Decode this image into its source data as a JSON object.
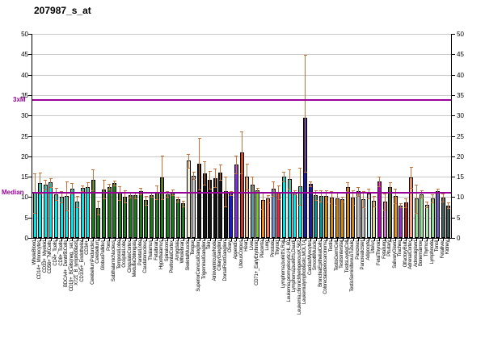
{
  "title": "207987_s_at",
  "chart_data": {
    "type": "bar",
    "title": "207987_s_at",
    "xlabel": "",
    "ylabel": "",
    "ylim": [
      0,
      50
    ],
    "yticks": [
      0,
      5,
      10,
      15,
      20,
      25,
      30,
      35,
      40,
      45,
      50
    ],
    "grid": true,
    "legend": "none",
    "axis_color": "#000000",
    "grid_color": "#c9c9c9",
    "error_bar_color": "#c87137",
    "median_line": {
      "label": "Median",
      "value": 11.0,
      "color": "#990099"
    },
    "threshold_line": {
      "label": "3xM",
      "value": 33.8,
      "color": "#990099"
    },
    "bars": [
      {
        "label": "WholeBlood",
        "value": 11.0,
        "err": 15.8,
        "color": "#00e6e6"
      },
      {
        "label": "CD14+_Monocytes",
        "value": 13.4,
        "err": 16.0,
        "color": "#00e6e6"
      },
      {
        "label": "CD33+_Myeloid",
        "value": 13.0,
        "err": 14.2,
        "color": "#00e6e6"
      },
      {
        "label": "CD56+_NKCells",
        "value": 13.6,
        "err": 14.7,
        "color": "#00e6e6"
      },
      {
        "label": "CD4+_Tcells",
        "value": 10.7,
        "err": 12.2,
        "color": "#00e6e6"
      },
      {
        "label": "CD8+_Tcells",
        "value": 10.1,
        "err": 11.5,
        "color": "#00e6e6"
      },
      {
        "label": "BDCA4+_DentriticCells",
        "value": 10.3,
        "err": 13.9,
        "color": "#00e6e6"
      },
      {
        "label": "CD19+_BCells(neg._sel.)",
        "value": 12.1,
        "err": 13.4,
        "color": "#00e6e6"
      },
      {
        "label": "X721_B_lymphoblasts",
        "value": 8.9,
        "err": 10.3,
        "color": "#00e6e6"
      },
      {
        "label": "CD105+_Endothelial",
        "value": 12.2,
        "err": 12.9,
        "color": "#00e6e6"
      },
      {
        "label": "CD34+",
        "value": 12.5,
        "err": 13.7,
        "color": "#00e6e6"
      },
      {
        "label": "CerebellumPeduncles",
        "value": 14.2,
        "err": 16.8,
        "color": "#1c7c1c"
      },
      {
        "label": "Cerebellum",
        "value": 7.4,
        "err": 9.0,
        "color": "#1c7c1c"
      },
      {
        "label": "GlobusPallidus",
        "value": 11.9,
        "err": 14.2,
        "color": "#1c7c1c"
      },
      {
        "label": "Pons",
        "value": 12.5,
        "err": 13.2,
        "color": "#1c7c1c"
      },
      {
        "label": "SubthalamicNucleus",
        "value": 13.4,
        "err": 14.0,
        "color": "#1c7c1c"
      },
      {
        "label": "TemporalLobe",
        "value": 11.0,
        "err": 12.7,
        "color": "#1c7c1c"
      },
      {
        "label": "OccipitalLobe",
        "value": 10.1,
        "err": 11.6,
        "color": "#1c7c1c"
      },
      {
        "label": "CingulateCortex",
        "value": 10.4,
        "err": 11.0,
        "color": "#1c7c1c"
      },
      {
        "label": "MedullaOblongata",
        "value": 10.4,
        "err": 11.2,
        "color": "#1c7c1c"
      },
      {
        "label": "ParietalLobe",
        "value": 11.5,
        "err": 12.3,
        "color": "#1c7c1c"
      },
      {
        "label": "Caudatenucleus",
        "value": 9.2,
        "err": 10.3,
        "color": "#1c7c1c"
      },
      {
        "label": "Thalamus",
        "value": 10.5,
        "err": 11.0,
        "color": "#1c7c1c"
      },
      {
        "label": "Fetalbrain",
        "value": 11.1,
        "err": 12.8,
        "color": "#1c7c1c"
      },
      {
        "label": "Hypothalamus",
        "value": 14.8,
        "err": 20.1,
        "color": "#1c7c1c"
      },
      {
        "label": "Spinalcord",
        "value": 10.7,
        "err": 11.4,
        "color": "#1c7c1c"
      },
      {
        "label": "PrefrontalCortex",
        "value": 11.1,
        "err": 11.8,
        "color": "#1c7c1c"
      },
      {
        "label": "Amygdala",
        "value": 9.4,
        "err": 10.0,
        "color": "#1c7c1c"
      },
      {
        "label": "Wholebrain",
        "value": 8.4,
        "err": 9.0,
        "color": "#1c7c1c"
      },
      {
        "label": "SkeletalMuscle",
        "value": 18.9,
        "err": 20.6,
        "color": "#f2edd5"
      },
      {
        "label": "Tongue",
        "value": 15.3,
        "err": 16.2,
        "color": "#c4c4c4"
      },
      {
        "label": "SuperiorCervicalGanglion",
        "value": 18.2,
        "err": 24.6,
        "color": "#141414"
      },
      {
        "label": "TrigeminalGanglion",
        "value": 15.9,
        "err": 18.8,
        "color": "#141414"
      },
      {
        "label": "Skin",
        "value": 14.3,
        "err": 16.5,
        "color": "#141414"
      },
      {
        "label": "AtrioventricularNode",
        "value": 14.7,
        "err": 16.9,
        "color": "#141414"
      },
      {
        "label": "CiliaryGanglion",
        "value": 16.1,
        "err": 18.0,
        "color": "#141414"
      },
      {
        "label": "DorsalRootGanglion",
        "value": 11.4,
        "err": 15.0,
        "color": "#141414"
      },
      {
        "label": "Ovary",
        "value": 11.0,
        "err": 11.5,
        "color": "#1a1ad2"
      },
      {
        "label": "Appendix",
        "value": 18.0,
        "err": 20.1,
        "color": "#8a2be2"
      },
      {
        "label": "UterusCorpus",
        "value": 20.9,
        "err": 26.0,
        "color": "#c0392b"
      },
      {
        "label": "Heart",
        "value": 15.0,
        "err": 18.2,
        "color": "#e3c39d"
      },
      {
        "label": "Liver",
        "value": 13.0,
        "err": 15.0,
        "color": "#5f9ea0"
      },
      {
        "label": "CD71+_EarlyErythroid",
        "value": 11.7,
        "err": 12.2,
        "color": "#7ccc1c"
      },
      {
        "label": "Placenta",
        "value": 9.2,
        "err": 11.2,
        "color": "#f08518"
      },
      {
        "label": "Lung",
        "value": 9.6,
        "err": 10.5,
        "color": "#ef7858"
      },
      {
        "label": "Prostate",
        "value": 12.0,
        "err": 13.8,
        "color": "#6c9bd8"
      },
      {
        "label": "Thyroid",
        "value": 11.1,
        "err": 12.8,
        "color": "#e8274b"
      },
      {
        "label": "Lymphoma,burkitt's,Raji",
        "value": 15.0,
        "err": 16.2,
        "color": "#00e6e6"
      },
      {
        "label": "Leukemia,promyelocytic,HL,60",
        "value": 14.4,
        "err": 16.7,
        "color": "#00e6e6"
      },
      {
        "label": "Lymphoma,burkitt's,Daudi",
        "value": 11.1,
        "err": 11.6,
        "color": "#00e6e6"
      },
      {
        "label": "Leukemia,chronicMyelogenousK,562",
        "value": 12.6,
        "err": 17.1,
        "color": "#00e6e6"
      },
      {
        "label": "Leukemialymphoblastic,MOLT,4",
        "value": 29.5,
        "err": 44.9,
        "color": "#1c1c9c"
      },
      {
        "label": "CardiacMyocytes",
        "value": 13.3,
        "err": 13.9,
        "color": "#1c1c9c"
      },
      {
        "label": "SmoothMuscle",
        "value": 10.5,
        "err": 11.7,
        "color": "#009393"
      },
      {
        "label": "BronchialEpithelialCells",
        "value": 10.2,
        "err": 11.6,
        "color": "#009393"
      },
      {
        "label": "Colorectaladenocarcinoma",
        "value": 10.2,
        "err": 11.6,
        "color": "#c8860b"
      },
      {
        "label": "Testis",
        "value": 9.9,
        "err": 11.4,
        "color": "#c8860b"
      },
      {
        "label": "TestisGermCell",
        "value": 9.7,
        "err": 11.3,
        "color": "#c8860b"
      },
      {
        "label": "TestisInterstial",
        "value": 9.4,
        "err": 10.0,
        "color": "#c8860b"
      },
      {
        "label": "TestisLeydigCell",
        "value": 12.5,
        "err": 13.6,
        "color": "#c8860b"
      },
      {
        "label": "TestisSeminiferousTubule",
        "value": 9.9,
        "err": 11.6,
        "color": "#c8860b"
      },
      {
        "label": "Pancreas",
        "value": 11.4,
        "err": 12.5,
        "color": "#c0c0c0"
      },
      {
        "label": "PancreaticIslet",
        "value": 9.5,
        "err": 11.4,
        "color": "#c0c0c0"
      },
      {
        "label": "Adipocyte",
        "value": 10.9,
        "err": 12.1,
        "color": "#afeeee"
      },
      {
        "label": "Uterus",
        "value": 9.0,
        "err": 10.2,
        "color": "#d6d68e"
      },
      {
        "label": "FetalThyroid",
        "value": 13.8,
        "err": 15.0,
        "color": "#c000c0"
      },
      {
        "label": "Fetallung",
        "value": 8.9,
        "err": 10.9,
        "color": "#ce6bc4"
      },
      {
        "label": "Pituitary",
        "value": 12.5,
        "err": 13.7,
        "color": "#556b2f"
      },
      {
        "label": "SalivaryGland",
        "value": 10.2,
        "err": 12.0,
        "color": "#e09020"
      },
      {
        "label": "Trachea",
        "value": 8.0,
        "err": 8.5,
        "color": "#9932cc"
      },
      {
        "label": "OlfactoryBulb",
        "value": 8.6,
        "err": 9.6,
        "color": "#a02020"
      },
      {
        "label": "AdrenalCortex",
        "value": 14.8,
        "err": 17.3,
        "color": "#ffa07a"
      },
      {
        "label": "Adrenalgland",
        "value": 9.6,
        "err": 13.0,
        "color": "#8fd88f"
      },
      {
        "label": "Bonemarrow",
        "value": 10.7,
        "err": 11.6,
        "color": "#98e098"
      },
      {
        "label": "Thymus",
        "value": 8.2,
        "err": 8.9,
        "color": "#a8e8a8"
      },
      {
        "label": "Lymphnode",
        "value": 9.7,
        "err": 10.7,
        "color": "#8fd88f"
      },
      {
        "label": "Tonsil",
        "value": 11.5,
        "err": 12.0,
        "color": "#6959b8"
      },
      {
        "label": "Fetalliver",
        "value": 9.9,
        "err": 10.9,
        "color": "#42605c"
      },
      {
        "label": "Kidney",
        "value": 8.0,
        "err": 8.6,
        "color": "#3c5a56"
      }
    ]
  }
}
